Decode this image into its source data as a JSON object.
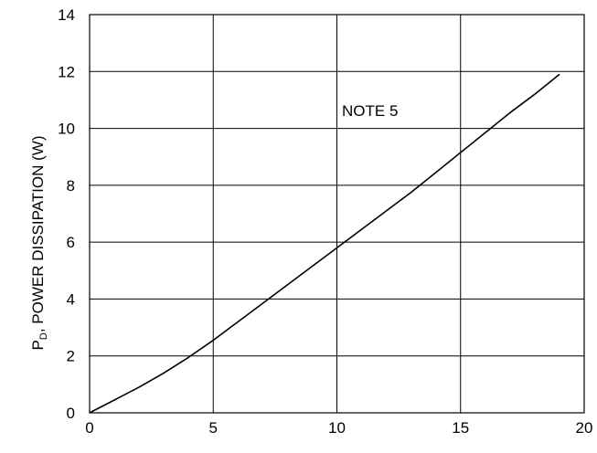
{
  "chart_data": {
    "type": "line",
    "title": "",
    "xlabel": "",
    "ylabel": {
      "symbol": "P",
      "subscript": "D",
      "text": ", POWER DISSIPATION (W)"
    },
    "xlim": [
      0,
      20
    ],
    "ylim": [
      0,
      14
    ],
    "x_ticks": [
      0,
      5,
      10,
      15,
      20
    ],
    "y_ticks": [
      0,
      2,
      4,
      6,
      8,
      10,
      12,
      14
    ],
    "x_tick_labels": [
      "0",
      "5",
      "10",
      "15",
      "20"
    ],
    "y_tick_labels": [
      "0",
      "2",
      "4",
      "6",
      "8",
      "10",
      "12",
      "14"
    ],
    "grid": true,
    "legend": "none",
    "annotation": "NOTE 5",
    "series": [
      {
        "color": "#000000",
        "x": [
          0,
          1,
          2,
          3,
          4,
          5,
          6,
          7,
          8,
          9,
          10,
          11,
          12,
          13,
          14,
          15,
          16,
          17,
          18,
          19
        ],
        "y": [
          0,
          0.45,
          0.9,
          1.4,
          1.95,
          2.55,
          3.2,
          3.85,
          4.5,
          5.15,
          5.8,
          6.45,
          7.1,
          7.75,
          8.45,
          9.15,
          9.85,
          10.55,
          11.2,
          11.9
        ]
      }
    ]
  }
}
